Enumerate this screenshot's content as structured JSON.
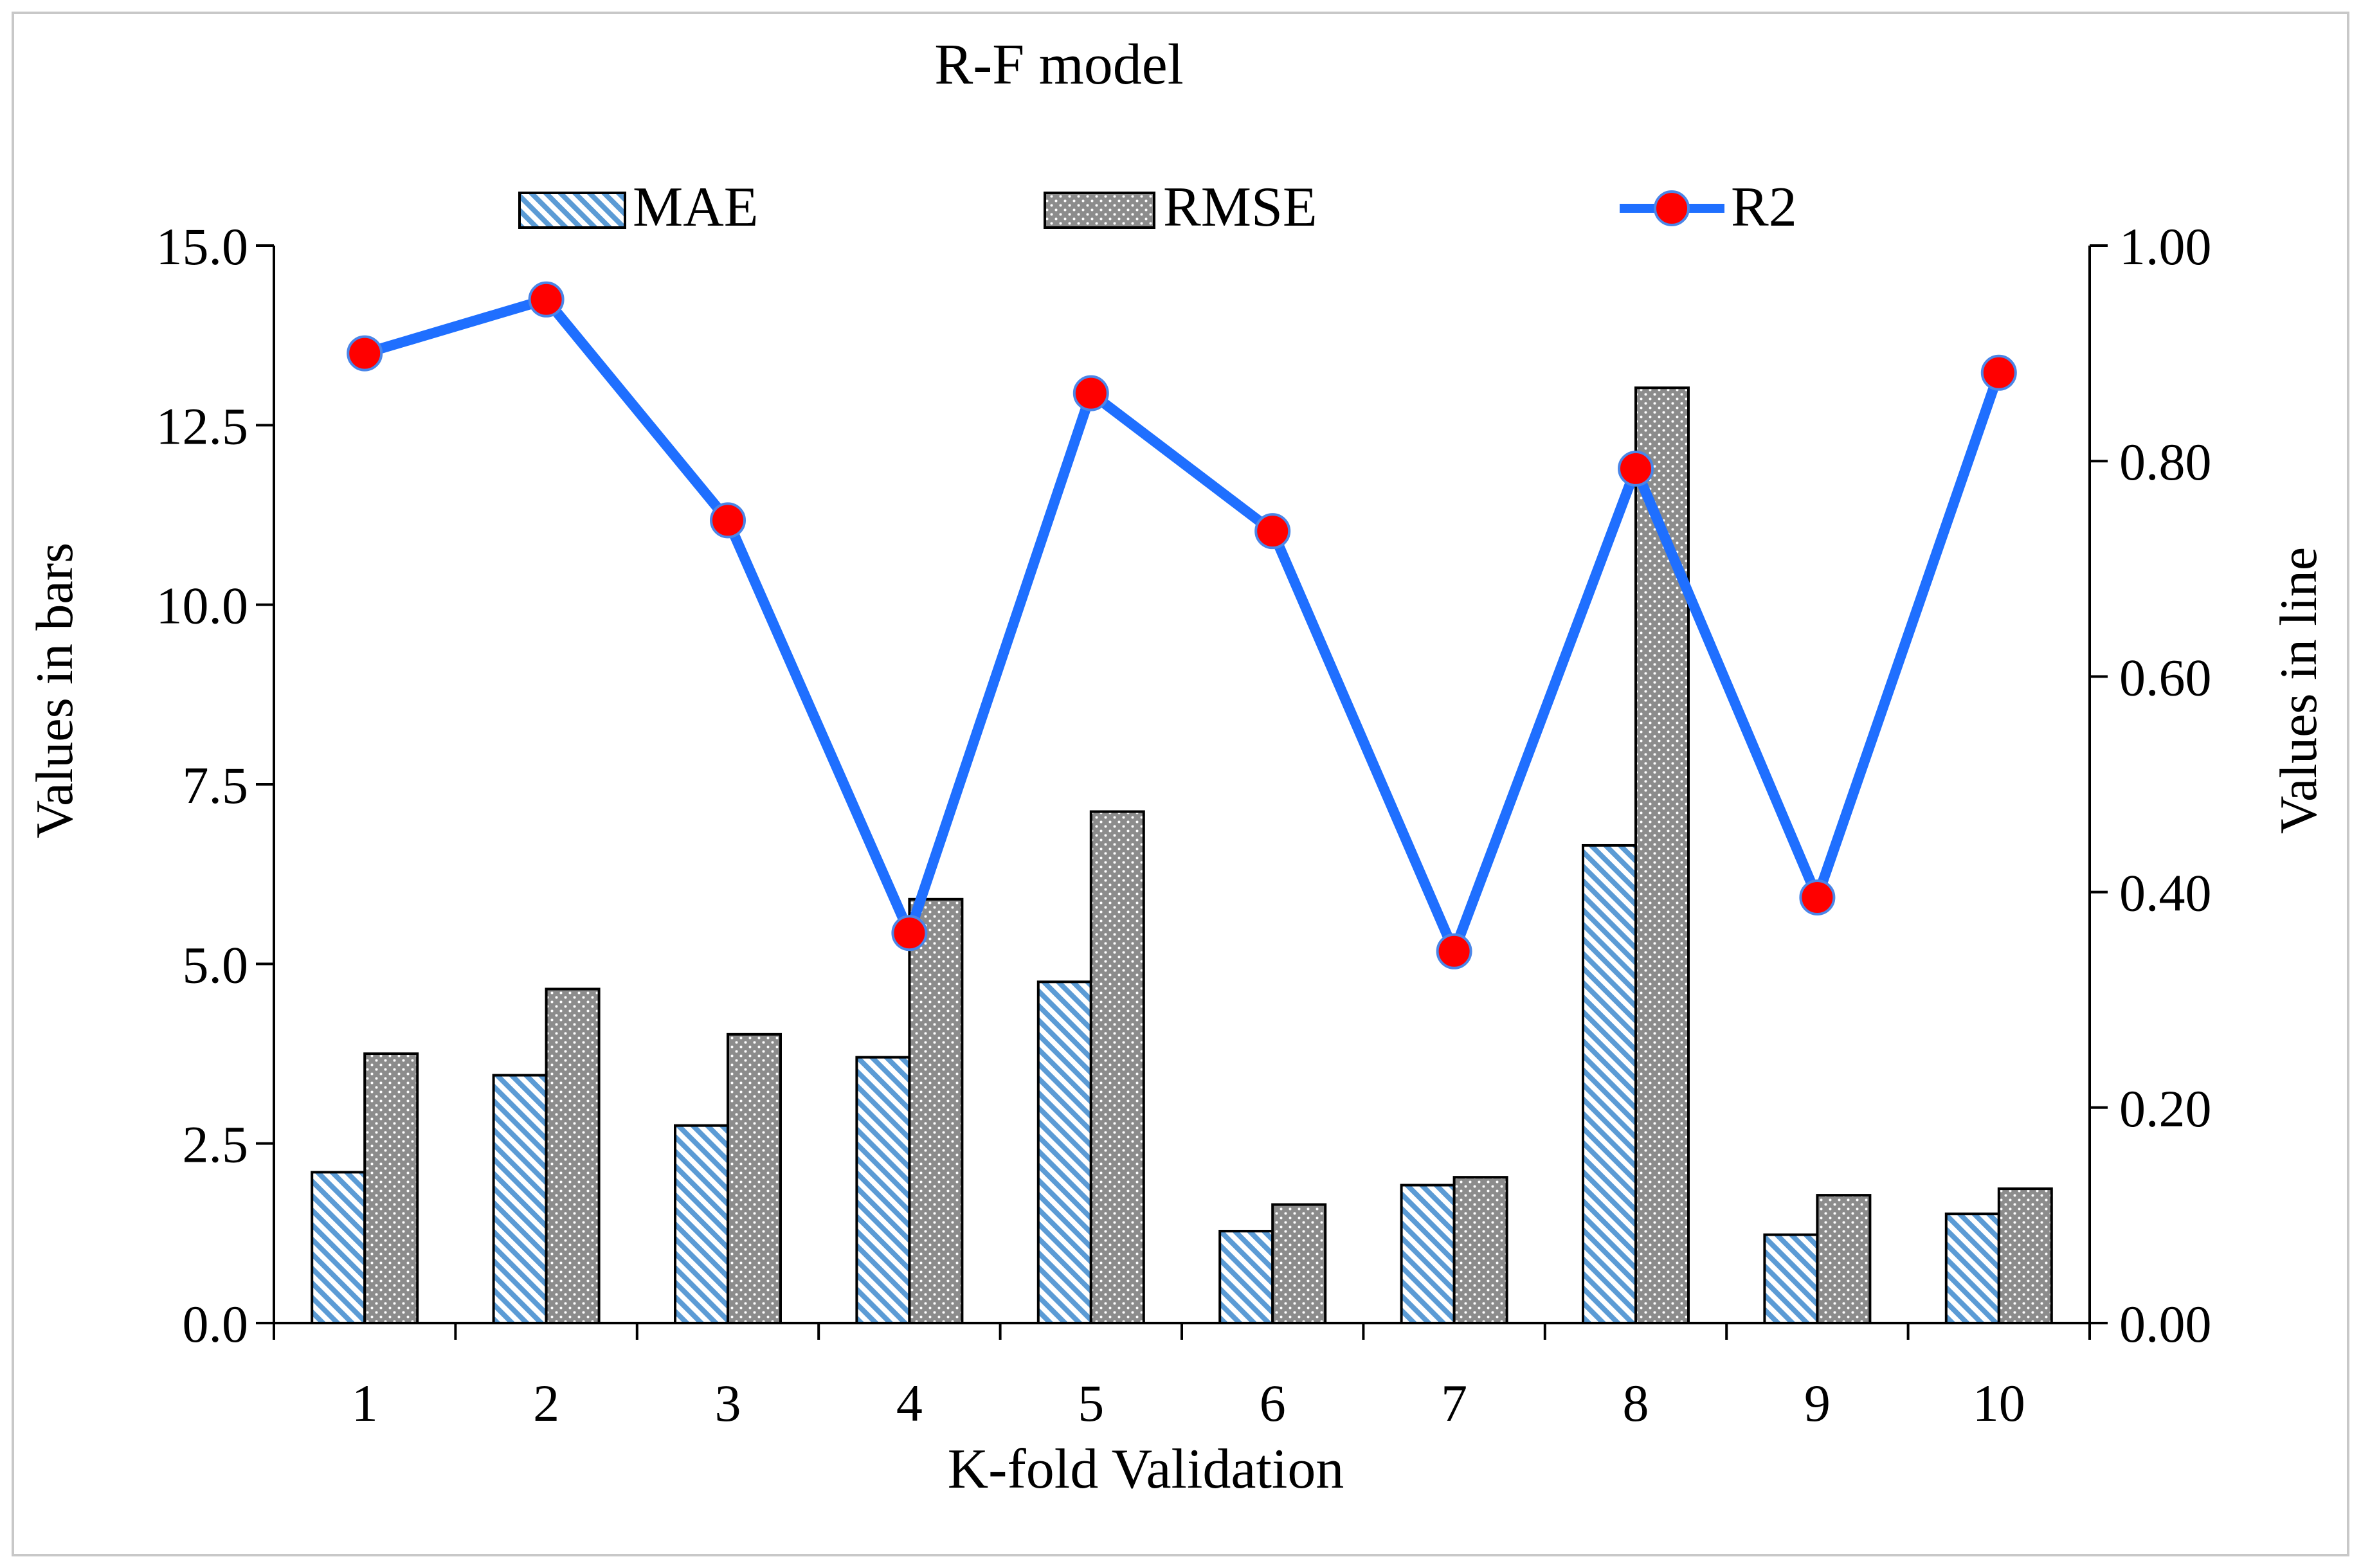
{
  "chart_data": {
    "type": "bar+line",
    "title": "R-F model",
    "xlabel": "K-fold Validation",
    "ylabel_left": "Values in bars",
    "ylabel_right": "Values in line",
    "categories": [
      "1",
      "2",
      "3",
      "4",
      "5",
      "6",
      "7",
      "8",
      "9",
      "10"
    ],
    "ylim_left": [
      0,
      15
    ],
    "yticks_left": [
      "0.0",
      "2.5",
      "5.0",
      "7.5",
      "10.0",
      "12.5",
      "15.0"
    ],
    "ylim_right": [
      0,
      1
    ],
    "yticks_right": [
      "0.00",
      "0.20",
      "0.40",
      "0.60",
      "0.80",
      "1.00"
    ],
    "grid": false,
    "legend_position": "top",
    "series": [
      {
        "name": "MAE",
        "kind": "bar",
        "axis": "left",
        "pattern": "diagonal-hatch",
        "values": [
          2.1,
          3.45,
          2.75,
          3.7,
          4.75,
          1.28,
          1.92,
          6.65,
          1.23,
          1.52
        ]
      },
      {
        "name": "RMSE",
        "kind": "bar",
        "axis": "left",
        "pattern": "dotted-gray",
        "values": [
          3.75,
          4.65,
          4.02,
          5.9,
          7.12,
          1.65,
          2.03,
          13.02,
          1.78,
          1.87
        ]
      },
      {
        "name": "R2",
        "kind": "line",
        "axis": "right",
        "color": "#1f6fff",
        "marker_color": "#ff0000",
        "values": [
          0.9,
          0.95,
          0.745,
          0.362,
          0.863,
          0.735,
          0.345,
          0.793,
          0.395,
          0.882
        ]
      }
    ]
  }
}
